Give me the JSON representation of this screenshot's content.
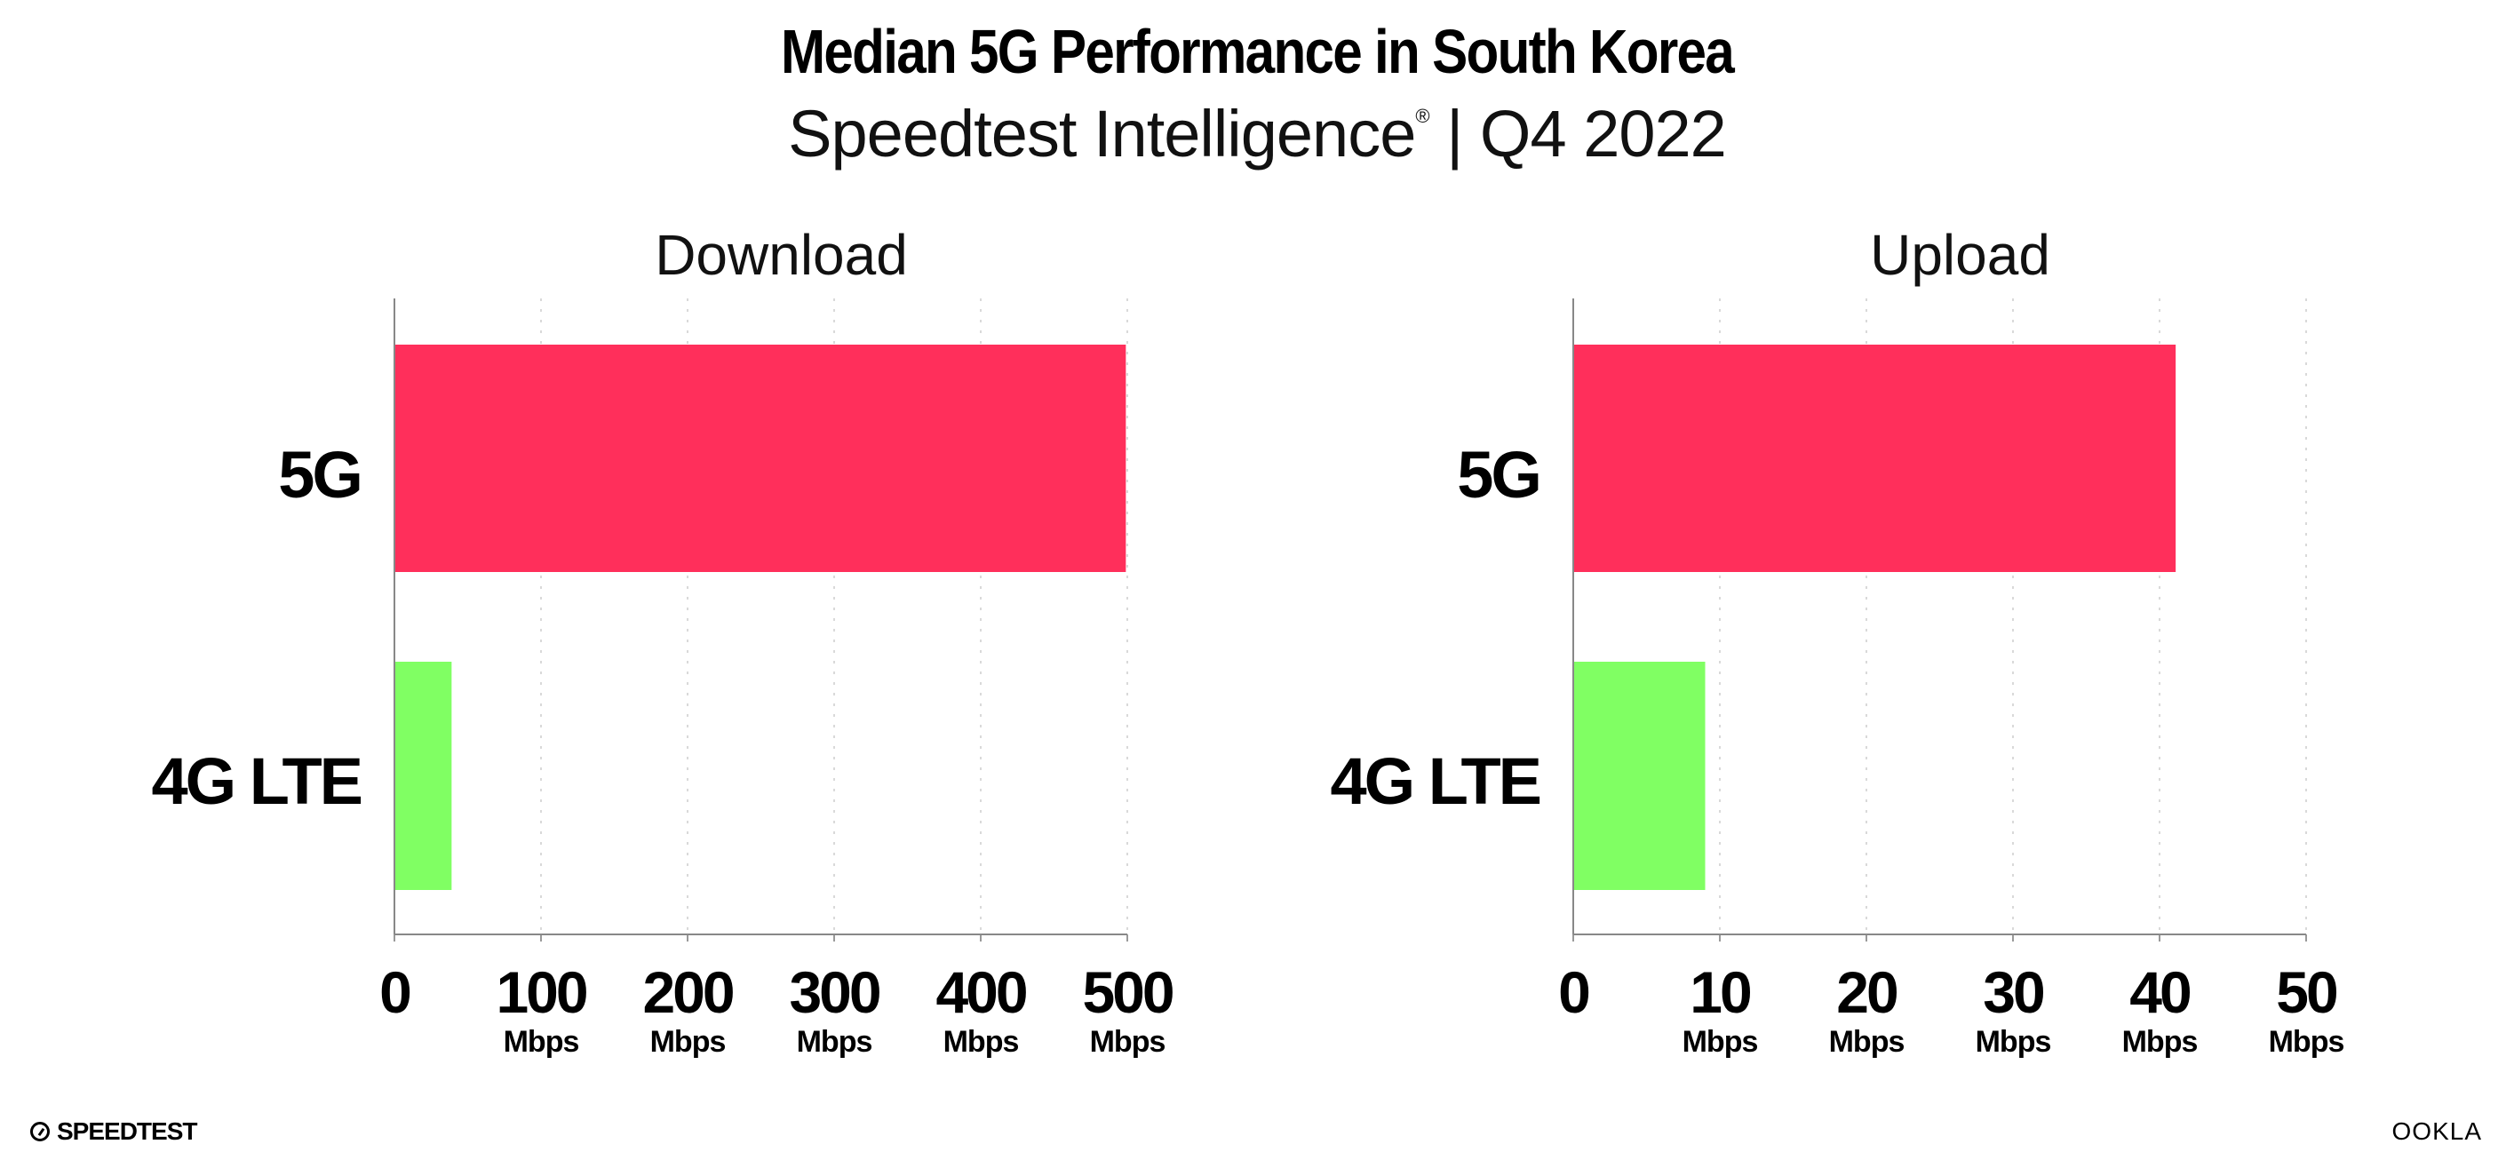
{
  "title": "Median 5G Performance in South Korea",
  "subtitle": "Speedtest Intelligence",
  "subtitle_mark": "®",
  "subtitle_period": " | Q4 2022",
  "footer": {
    "left_logo": "SPEEDTEST",
    "right_logo": "OOKLA"
  },
  "colors": {
    "5G": "#FF2F5B",
    "4G LTE": "#80FF63"
  },
  "chart_data": [
    {
      "type": "bar",
      "orientation": "horizontal",
      "title": "Download",
      "categories": [
        "5G",
        "4G LTE"
      ],
      "values": [
        499,
        39
      ],
      "xlim": [
        0,
        500
      ],
      "ticks": [
        0,
        100,
        200,
        300,
        400,
        500
      ],
      "tick_unit": "Mbps",
      "grid": true
    },
    {
      "type": "bar",
      "orientation": "horizontal",
      "title": "Upload",
      "categories": [
        "5G",
        "4G LTE"
      ],
      "values": [
        41.1,
        9.0
      ],
      "xlim": [
        0,
        50
      ],
      "ticks": [
        0,
        10,
        20,
        30,
        40,
        50
      ],
      "tick_unit": "Mbps",
      "grid": true
    }
  ]
}
